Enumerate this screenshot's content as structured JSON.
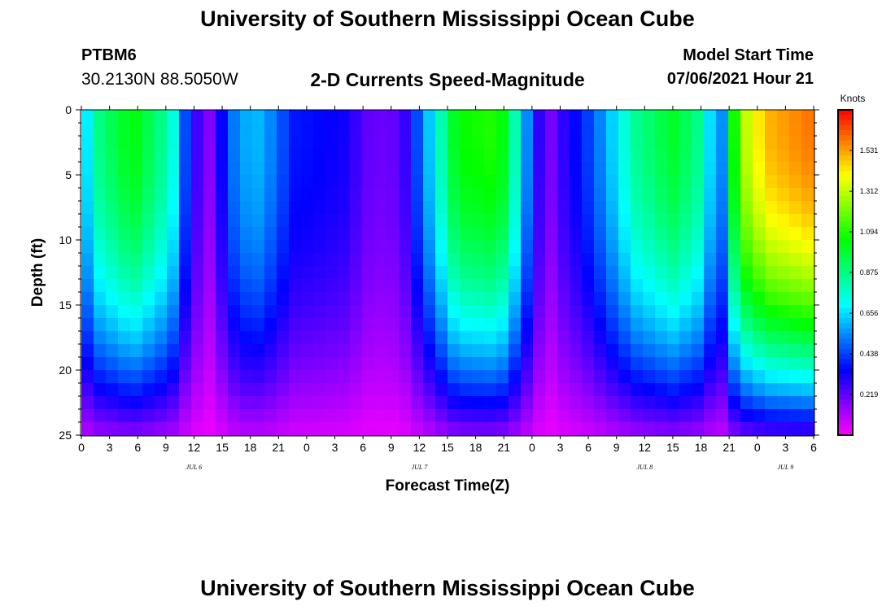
{
  "header": {
    "title": "University of Southern Mississippi Ocean Cube",
    "station": "PTBM6",
    "coordinates": "30.2130N  88.5050W",
    "subtitle": "2-D Currents Speed-Magnitude",
    "model_start_label": "Model Start Time",
    "model_start_time": "07/06/2021 Hour 21"
  },
  "footer": {
    "title": "University of Southern Mississippi Ocean Cube"
  },
  "chart_data": {
    "type": "heatmap",
    "title": "2-D Currents Speed-Magnitude",
    "xlabel": "Forecast Time(Z)",
    "ylabel": "Depth (ft)",
    "x_tick_labels": [
      "0",
      "3",
      "6",
      "9",
      "12",
      "15",
      "18",
      "21",
      "0",
      "3",
      "6",
      "9",
      "12",
      "15",
      "18",
      "21",
      "0",
      "3",
      "6",
      "9",
      "12",
      "15",
      "18",
      "21",
      "0",
      "3",
      "6"
    ],
    "x_range_hours": [
      0,
      78
    ],
    "date_labels": [
      {
        "text": "JUL 6",
        "hour": 12
      },
      {
        "text": "JUL 7",
        "hour": 36
      },
      {
        "text": "JUL 8",
        "hour": 60
      },
      {
        "text": "JUL 9",
        "hour": 75
      }
    ],
    "y_ticks": [
      0,
      5,
      10,
      15,
      20,
      25
    ],
    "ylim": [
      0,
      25
    ],
    "y_inverted": true,
    "colorbar": {
      "unit": "Knots",
      "ticks": [
        "0.219",
        "0.438",
        "0.656",
        "0.875",
        "1.094",
        "1.312",
        "1.531"
      ],
      "range": [
        0,
        1.75
      ]
    },
    "depth_profile_ft": [
      0,
      1,
      2,
      3,
      4,
      5,
      6,
      7,
      8,
      9,
      10,
      11,
      12,
      13,
      14,
      15,
      16,
      17,
      18,
      19,
      20,
      21,
      22,
      23,
      24,
      25
    ],
    "speed_surface_knots": [
      {
        "hour": 0,
        "value": 0.55
      },
      {
        "hour": 1.5,
        "value": 0.85
      },
      {
        "hour": 5.5,
        "value": 1.05
      },
      {
        "hour": 9.5,
        "value": 0.8
      },
      {
        "hour": 11.5,
        "value": 0.35
      },
      {
        "hour": 13.5,
        "value": 0.15
      },
      {
        "hour": 16.5,
        "value": 0.55
      },
      {
        "hour": 18.5,
        "value": 0.62
      },
      {
        "hour": 20.5,
        "value": 0.52
      },
      {
        "hour": 22.5,
        "value": 0.38
      },
      {
        "hour": 25,
        "value": 0.36
      },
      {
        "hour": 28,
        "value": 0.33
      },
      {
        "hour": 31,
        "value": 0.2
      },
      {
        "hour": 34,
        "value": 0.22
      },
      {
        "hour": 37,
        "value": 0.62
      },
      {
        "hour": 40,
        "value": 1.05
      },
      {
        "hour": 44.5,
        "value": 1.1
      },
      {
        "hour": 46.5,
        "value": 0.75
      },
      {
        "hour": 48,
        "value": 0.42
      },
      {
        "hour": 49.5,
        "value": 0.15
      },
      {
        "hour": 51.5,
        "value": 0.3
      },
      {
        "hour": 53.5,
        "value": 0.4
      },
      {
        "hour": 55.5,
        "value": 0.55
      },
      {
        "hour": 59,
        "value": 0.85
      },
      {
        "hour": 63,
        "value": 1.0
      },
      {
        "hour": 66,
        "value": 0.85
      },
      {
        "hour": 68,
        "value": 0.45
      },
      {
        "hour": 70,
        "value": 1.25
      },
      {
        "hour": 73,
        "value": 1.5
      },
      {
        "hour": 78,
        "value": 1.6
      }
    ]
  }
}
